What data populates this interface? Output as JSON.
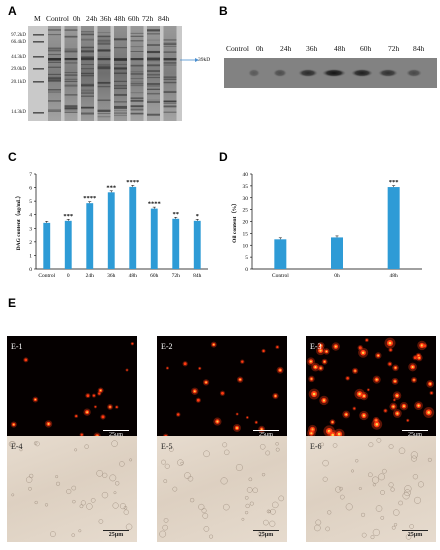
{
  "panels": {
    "A": "A",
    "B": "B",
    "C": "C",
    "D": "D",
    "E": "E"
  },
  "panel_a": {
    "lanes": [
      "M",
      "Control",
      "0h",
      "24h",
      "36h",
      "48h",
      "60h",
      "72h",
      "84h"
    ],
    "markers": [
      "97.2kD",
      "66.4kD",
      "44.3kD",
      "29.0kD",
      "20.1kD",
      "14.3kD"
    ],
    "band_label": "39kD"
  },
  "panel_b": {
    "lanes": [
      "Control",
      "0h",
      "24h",
      "36h",
      "48h",
      "60h",
      "72h",
      "84h"
    ]
  },
  "panel_e": {
    "images": [
      {
        "label": "E-1",
        "scale": "25μm"
      },
      {
        "label": "E-2",
        "scale": "25μm"
      },
      {
        "label": "E-3",
        "scale": "25μm"
      },
      {
        "label": "E-4",
        "scale": "25μm"
      },
      {
        "label": "E-5",
        "scale": "25μm"
      },
      {
        "label": "E-6",
        "scale": "25μm"
      }
    ]
  },
  "colors": {
    "bar": "#2e9bd6",
    "fluo_spot": "#ff3a10",
    "fluo_core": "#ffd24a"
  },
  "chart_data": [
    {
      "type": "bar",
      "panel": "C",
      "ylabel": "DAG content（ug/mL）",
      "categories": [
        "Control",
        "0",
        "24h",
        "36h",
        "48h",
        "60h",
        "72h",
        "84h"
      ],
      "values": [
        3.4,
        3.55,
        4.85,
        5.65,
        6.05,
        4.45,
        3.7,
        3.55
      ],
      "annotations": [
        "",
        "***",
        "****",
        "***",
        "****",
        "****",
        "**",
        "*"
      ],
      "ylim": [
        0,
        7
      ],
      "yticks": [
        0,
        1,
        2,
        3,
        4,
        5,
        6,
        7
      ]
    },
    {
      "type": "bar",
      "panel": "D",
      "ylabel": "Oil content（%）",
      "categories": [
        "Control",
        "0h",
        "48h"
      ],
      "values": [
        12.5,
        13.3,
        34.5
      ],
      "annotations": [
        "",
        "",
        "***"
      ],
      "ylim": [
        0,
        40
      ],
      "yticks": [
        0,
        5,
        10,
        15,
        20,
        25,
        30,
        35,
        40
      ]
    }
  ]
}
